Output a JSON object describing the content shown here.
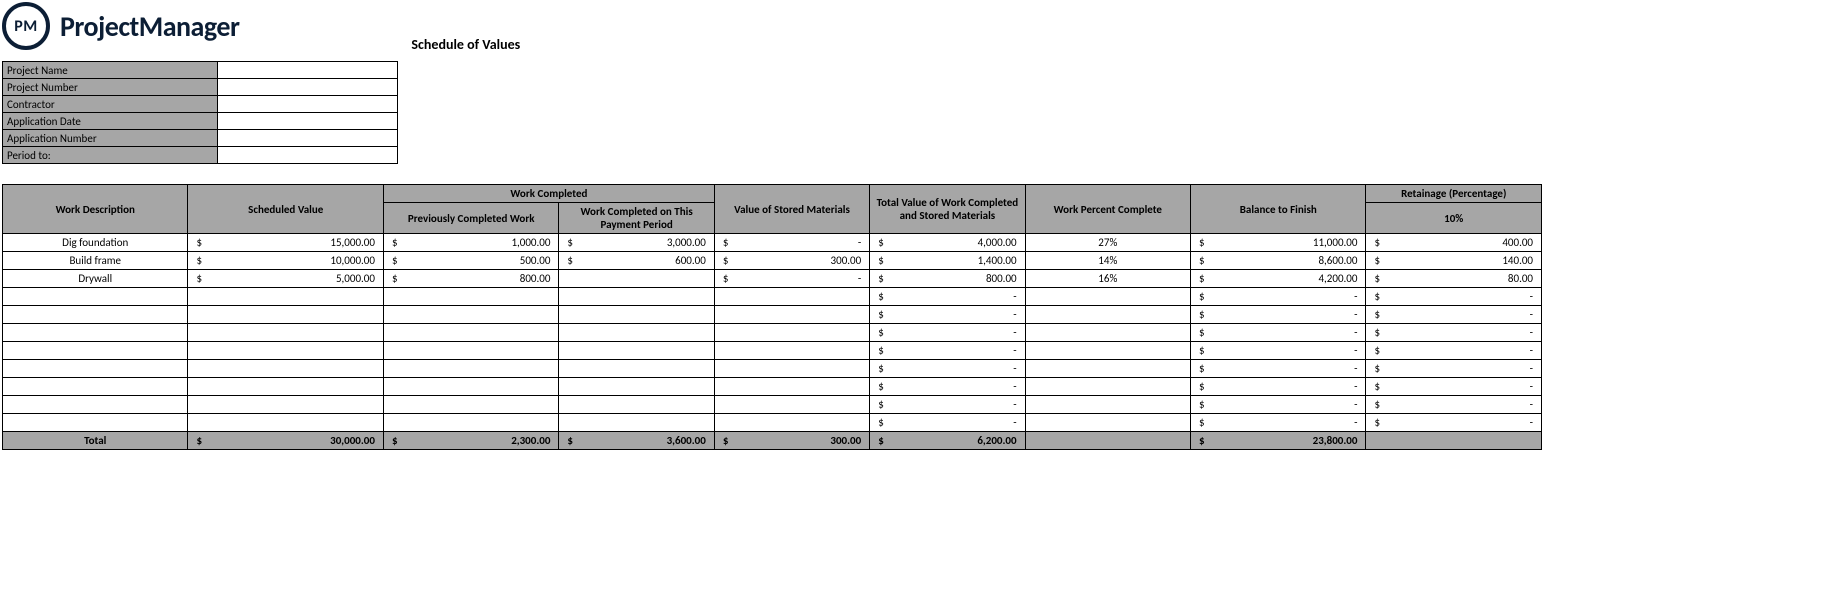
{
  "brand": {
    "initials": "PM",
    "name": "ProjectManager"
  },
  "title": "Schedule of Values",
  "meta": {
    "labels": [
      "Project Name",
      "Project Number",
      "Contractor",
      "Application Date",
      "Application Number",
      "Period to:"
    ],
    "values": [
      "",
      "",
      "",
      "",
      "",
      ""
    ]
  },
  "columns": {
    "work_description": "Work Description",
    "scheduled_value": "Scheduled Value",
    "work_completed": "Work Completed",
    "prev_completed": "Previously Completed Work",
    "completed_this_period": "Work Completed on This Payment Period",
    "stored_materials": "Value of Stored Materials",
    "total_value": "Total Value of Work Completed and Stored Materials",
    "percent_complete": "Work Percent Complete",
    "balance_to_finish": "Balance to Finish",
    "retainage_header": "Retainage (Percentage)",
    "retainage_pct": "10%",
    "col_widths": {
      "desc": 185,
      "scheduled": 195,
      "prev": 175,
      "this_period": 155,
      "stored": 155,
      "total": 155,
      "pct": 165,
      "balance": 175,
      "retainage": 175
    }
  },
  "rows": [
    {
      "desc": "Dig foundation",
      "scheduled": "15,000.00",
      "prev": "1,000.00",
      "this_period": "3,000.00",
      "stored": "-",
      "total": "4,000.00",
      "pct": "27%",
      "balance": "11,000.00",
      "retainage": "400.00"
    },
    {
      "desc": "Build frame",
      "scheduled": "10,000.00",
      "prev": "500.00",
      "this_period": "600.00",
      "stored": "300.00",
      "total": "1,400.00",
      "pct": "14%",
      "balance": "8,600.00",
      "retainage": "140.00"
    },
    {
      "desc": "Drywall",
      "scheduled": "5,000.00",
      "prev": "800.00",
      "this_period": "",
      "stored": "-",
      "total": "800.00",
      "pct": "16%",
      "balance": "4,200.00",
      "retainage": "80.00"
    },
    {
      "desc": "",
      "scheduled": "",
      "prev": "",
      "this_period": "",
      "stored": "",
      "total": "-",
      "pct": "",
      "balance": "-",
      "retainage": "-"
    },
    {
      "desc": "",
      "scheduled": "",
      "prev": "",
      "this_period": "",
      "stored": "",
      "total": "-",
      "pct": "",
      "balance": "-",
      "retainage": "-"
    },
    {
      "desc": "",
      "scheduled": "",
      "prev": "",
      "this_period": "",
      "stored": "",
      "total": "-",
      "pct": "",
      "balance": "-",
      "retainage": "-"
    },
    {
      "desc": "",
      "scheduled": "",
      "prev": "",
      "this_period": "",
      "stored": "",
      "total": "-",
      "pct": "",
      "balance": "-",
      "retainage": "-"
    },
    {
      "desc": "",
      "scheduled": "",
      "prev": "",
      "this_period": "",
      "stored": "",
      "total": "-",
      "pct": "",
      "balance": "-",
      "retainage": "-"
    },
    {
      "desc": "",
      "scheduled": "",
      "prev": "",
      "this_period": "",
      "stored": "",
      "total": "-",
      "pct": "",
      "balance": "-",
      "retainage": "-"
    },
    {
      "desc": "",
      "scheduled": "",
      "prev": "",
      "this_period": "",
      "stored": "",
      "total": "-",
      "pct": "",
      "balance": "-",
      "retainage": "-"
    },
    {
      "desc": "",
      "scheduled": "",
      "prev": "",
      "this_period": "",
      "stored": "",
      "total": "-",
      "pct": "",
      "balance": "-",
      "retainage": "-"
    }
  ],
  "totals": {
    "label": "Total",
    "scheduled": "30,000.00",
    "prev": "2,300.00",
    "this_period": "3,600.00",
    "stored": "300.00",
    "total": "6,200.00",
    "pct": "",
    "balance": "23,800.00",
    "retainage": ""
  },
  "colors": {
    "header_bg": "#a6a6a6",
    "border": "#000000",
    "bg": "#ffffff",
    "brand": "#0c1e35"
  }
}
